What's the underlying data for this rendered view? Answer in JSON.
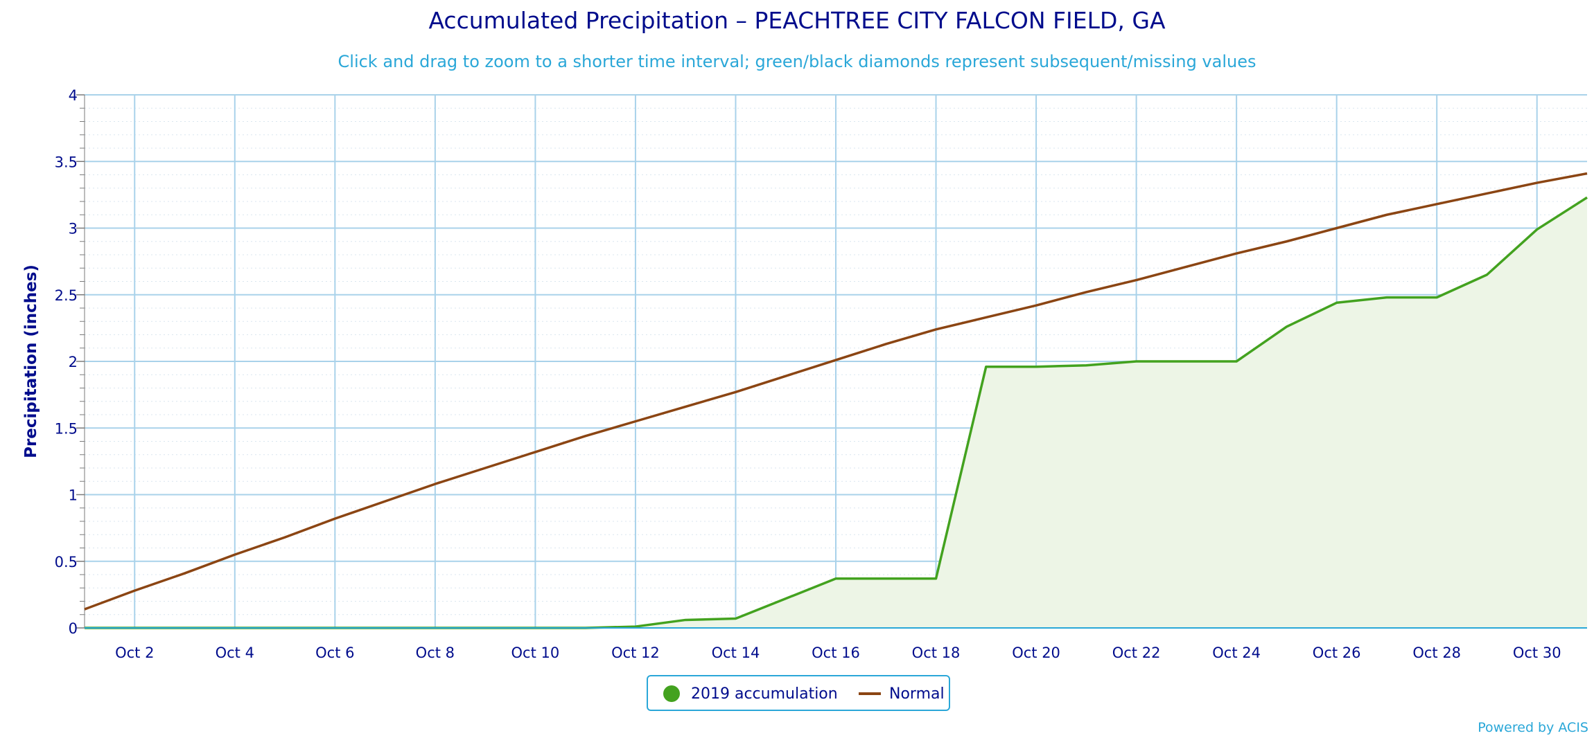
{
  "chart_data": {
    "type": "line",
    "title": "Accumulated Precipitation – PEACHTREE CITY FALCON FIELD, GA",
    "subtitle": "Click and drag to zoom to a shorter time interval; green/black diamonds represent subsequent/missing values",
    "ylabel": "Precipitation (inches)",
    "ylim": [
      0,
      4
    ],
    "yticks": [
      "0",
      "0.5",
      "1",
      "1.5",
      "2",
      "2.5",
      "3",
      "3.5",
      "4"
    ],
    "x_days": [
      1,
      31
    ],
    "xticks": [
      "Oct 2",
      "Oct 4",
      "Oct 6",
      "Oct 8",
      "Oct 10",
      "Oct 12",
      "Oct 14",
      "Oct 16",
      "Oct 18",
      "Oct 20",
      "Oct 22",
      "Oct 24",
      "Oct 26",
      "Oct 28",
      "Oct 30"
    ],
    "grid": true,
    "legend_position": "bottom",
    "series": [
      {
        "name": "2019 accumulation",
        "type": "area",
        "color": "#43a21f",
        "fill": "#edf5e6",
        "x": [
          1,
          2,
          3,
          4,
          5,
          6,
          7,
          8,
          9,
          10,
          11,
          12,
          13,
          14,
          15,
          16,
          17,
          18,
          19,
          20,
          21,
          22,
          23,
          24,
          25,
          26,
          27,
          28,
          29,
          30,
          31
        ],
        "values": [
          0,
          0,
          0,
          0,
          0,
          0,
          0,
          0,
          0,
          0,
          0,
          0.01,
          0.06,
          0.07,
          0.22,
          0.37,
          0.37,
          0.37,
          1.96,
          1.96,
          1.97,
          2.0,
          2.0,
          2.0,
          2.26,
          2.44,
          2.48,
          2.48,
          2.65,
          2.99,
          3.23
        ]
      },
      {
        "name": "Normal",
        "type": "line",
        "color": "#8b4513",
        "x": [
          1,
          2,
          3,
          4,
          5,
          6,
          7,
          8,
          9,
          10,
          11,
          12,
          13,
          14,
          15,
          16,
          17,
          18,
          19,
          20,
          21,
          22,
          23,
          24,
          25,
          26,
          27,
          28,
          29,
          30,
          31
        ],
        "values": [
          0.14,
          0.28,
          0.41,
          0.55,
          0.68,
          0.82,
          0.95,
          1.08,
          1.2,
          1.32,
          1.44,
          1.55,
          1.66,
          1.77,
          1.89,
          2.01,
          2.13,
          2.24,
          2.33,
          2.42,
          2.52,
          2.61,
          2.71,
          2.81,
          2.9,
          3.0,
          3.1,
          3.18,
          3.26,
          3.34,
          3.41
        ]
      }
    ]
  },
  "credit": "Powered by ACIS",
  "legend": {
    "items": [
      {
        "label": "2019 accumulation",
        "color": "#43a21f"
      },
      {
        "label": "Normal",
        "color": "#8b4513"
      }
    ]
  }
}
